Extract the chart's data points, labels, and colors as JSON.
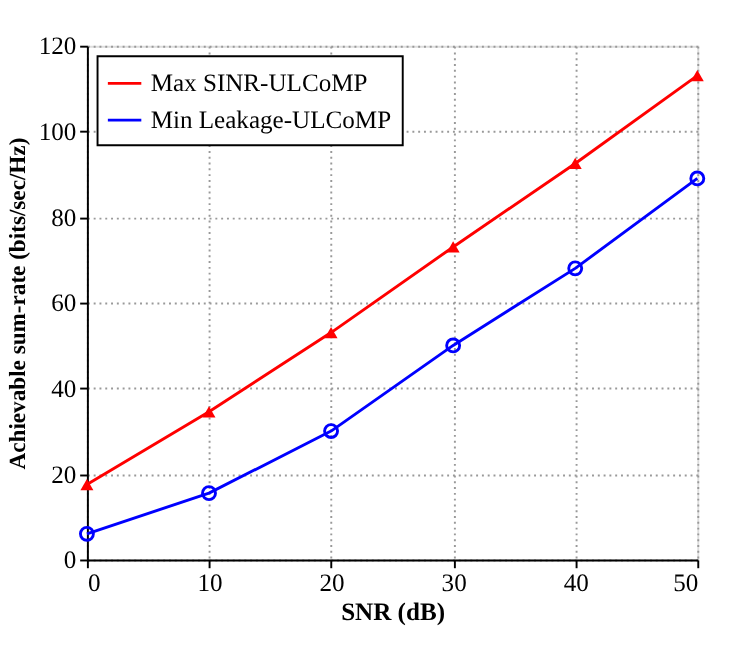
{
  "chart_data": {
    "type": "line",
    "xlabel": "SNR (dB)",
    "ylabel": "Achievable sum-rate (bits/sec/Hz)",
    "x": [
      0,
      10,
      20,
      30,
      40,
      50
    ],
    "series": [
      {
        "name": "Max SINR-ULCoMP",
        "color": "#ff0000",
        "marker": "triangle",
        "values": [
          17.5,
          34.5,
          53,
          73,
          92.5,
          113
        ]
      },
      {
        "name": "Min Leakage-ULCoMP",
        "color": "#0000ff",
        "marker": "circle",
        "values": [
          6,
          15.5,
          30,
          50,
          68,
          89
        ]
      }
    ],
    "xlim": [
      0,
      50
    ],
    "xticks": [
      0,
      10,
      20,
      30,
      40,
      50
    ],
    "ylim": [
      0,
      120
    ],
    "yticks": [
      0,
      20,
      40,
      60,
      80,
      100,
      120
    ],
    "grid": true,
    "legend": "top left",
    "line_style": "solid"
  }
}
